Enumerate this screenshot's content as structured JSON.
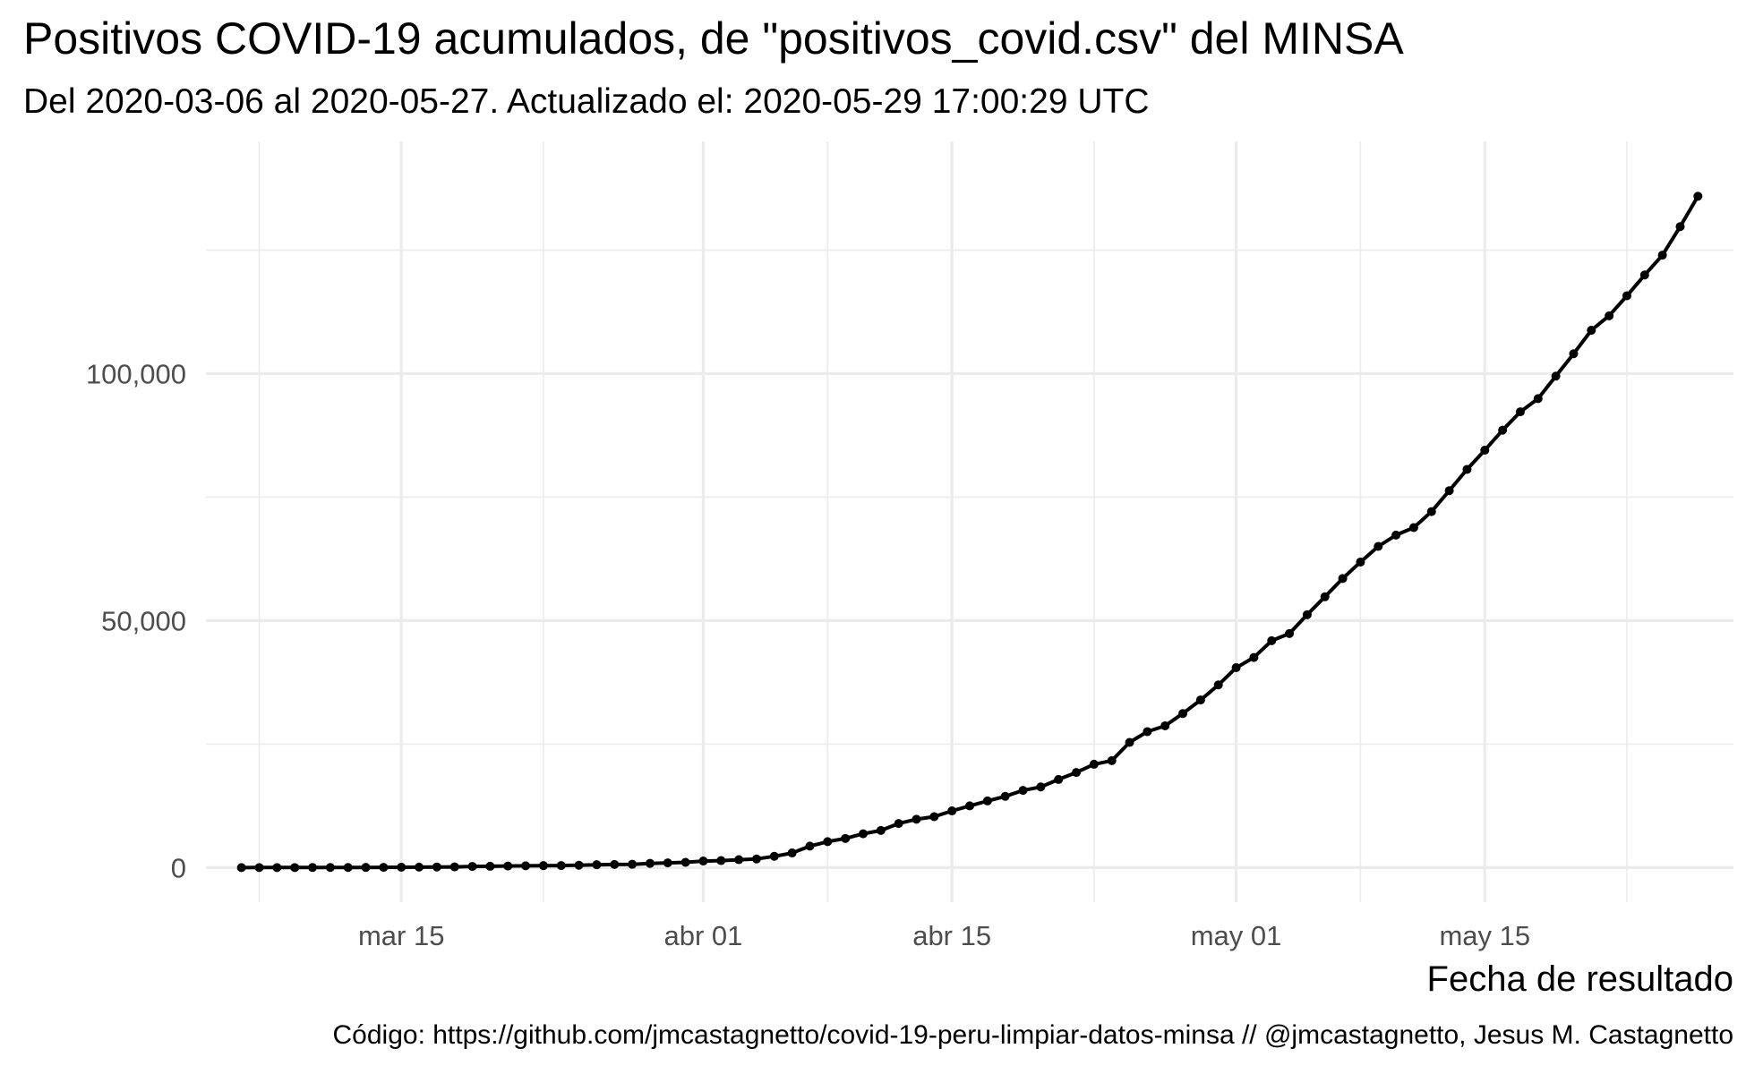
{
  "title": "Positivos COVID-19 acumulados, de \"positivos_covid.csv\" del MINSA",
  "subtitle": "Del 2020-03-06 al 2020-05-27. Actualizado el: 2020-05-29 17:00:29 UTC",
  "caption": "Código: https://github.com/jmcastagnetto/covid-19-peru-limpiar-datos-minsa // @jmcastagnetto, Jesus M. Castagnetto",
  "chart_data": {
    "type": "line",
    "title": "Positivos COVID-19 acumulados, de \"positivos_covid.csv\" del MINSA",
    "subtitle": "Del 2020-03-06 al 2020-05-27. Actualizado el: 2020-05-29 17:00:29 UTC",
    "xlabel": "Fecha de resultado",
    "ylabel": "",
    "x_start": "2020-03-06",
    "x_end": "2020-05-27",
    "xlim": [
      "2020-03-04",
      "2020-05-29"
    ],
    "ylim": [
      -7000,
      147000
    ],
    "x_ticks": [
      {
        "date": "2020-03-15",
        "label": "mar 15"
      },
      {
        "date": "2020-04-01",
        "label": "abr 01"
      },
      {
        "date": "2020-04-15",
        "label": "abr 15"
      },
      {
        "date": "2020-05-01",
        "label": "may 01"
      },
      {
        "date": "2020-05-15",
        "label": "may 15"
      }
    ],
    "x_minor_ticks": [
      "2020-03-07",
      "2020-03-23",
      "2020-04-08",
      "2020-04-23",
      "2020-05-08",
      "2020-05-23"
    ],
    "y_ticks": [
      {
        "value": 0,
        "label": "0"
      },
      {
        "value": 50000,
        "label": "50,000"
      },
      {
        "value": 100000,
        "label": "100,000"
      }
    ],
    "y_minor_ticks": [
      25000,
      75000,
      125000
    ],
    "grid": true,
    "series": [
      {
        "color": "#000000",
        "points": [
          {
            "x": "2020-03-06",
            "y": 1
          },
          {
            "x": "2020-03-07",
            "y": 5
          },
          {
            "x": "2020-03-08",
            "y": 7
          },
          {
            "x": "2020-03-09",
            "y": 9
          },
          {
            "x": "2020-03-10",
            "y": 11
          },
          {
            "x": "2020-03-11",
            "y": 17
          },
          {
            "x": "2020-03-12",
            "y": 22
          },
          {
            "x": "2020-03-13",
            "y": 38
          },
          {
            "x": "2020-03-14",
            "y": 43
          },
          {
            "x": "2020-03-15",
            "y": 71
          },
          {
            "x": "2020-03-16",
            "y": 86
          },
          {
            "x": "2020-03-17",
            "y": 117
          },
          {
            "x": "2020-03-18",
            "y": 145
          },
          {
            "x": "2020-03-19",
            "y": 234
          },
          {
            "x": "2020-03-20",
            "y": 263
          },
          {
            "x": "2020-03-21",
            "y": 318
          },
          {
            "x": "2020-03-22",
            "y": 363
          },
          {
            "x": "2020-03-23",
            "y": 395
          },
          {
            "x": "2020-03-24",
            "y": 416
          },
          {
            "x": "2020-03-25",
            "y": 480
          },
          {
            "x": "2020-03-26",
            "y": 580
          },
          {
            "x": "2020-03-27",
            "y": 635
          },
          {
            "x": "2020-03-28",
            "y": 671
          },
          {
            "x": "2020-03-29",
            "y": 852
          },
          {
            "x": "2020-03-30",
            "y": 950
          },
          {
            "x": "2020-03-31",
            "y": 1065
          },
          {
            "x": "2020-04-01",
            "y": 1323
          },
          {
            "x": "2020-04-02",
            "y": 1414
          },
          {
            "x": "2020-04-03",
            "y": 1595
          },
          {
            "x": "2020-04-04",
            "y": 1746
          },
          {
            "x": "2020-04-05",
            "y": 2281
          },
          {
            "x": "2020-04-06",
            "y": 2954
          },
          {
            "x": "2020-04-07",
            "y": 4342
          },
          {
            "x": "2020-04-08",
            "y": 5256
          },
          {
            "x": "2020-04-09",
            "y": 5897
          },
          {
            "x": "2020-04-10",
            "y": 6848
          },
          {
            "x": "2020-04-11",
            "y": 7519
          },
          {
            "x": "2020-04-12",
            "y": 8920
          },
          {
            "x": "2020-04-13",
            "y": 9784
          },
          {
            "x": "2020-04-14",
            "y": 10303
          },
          {
            "x": "2020-04-15",
            "y": 11475
          },
          {
            "x": "2020-04-16",
            "y": 12491
          },
          {
            "x": "2020-04-17",
            "y": 13489
          },
          {
            "x": "2020-04-18",
            "y": 14420
          },
          {
            "x": "2020-04-19",
            "y": 15628
          },
          {
            "x": "2020-04-20",
            "y": 16325
          },
          {
            "x": "2020-04-21",
            "y": 17837
          },
          {
            "x": "2020-04-22",
            "y": 19250
          },
          {
            "x": "2020-04-23",
            "y": 20914
          },
          {
            "x": "2020-04-24",
            "y": 21648
          },
          {
            "x": "2020-04-25",
            "y": 25331
          },
          {
            "x": "2020-04-26",
            "y": 27517
          },
          {
            "x": "2020-04-27",
            "y": 28699
          },
          {
            "x": "2020-04-28",
            "y": 31190
          },
          {
            "x": "2020-04-29",
            "y": 33931
          },
          {
            "x": "2020-04-30",
            "y": 36976
          },
          {
            "x": "2020-05-01",
            "y": 40459
          },
          {
            "x": "2020-05-02",
            "y": 42534
          },
          {
            "x": "2020-05-03",
            "y": 45928
          },
          {
            "x": "2020-05-04",
            "y": 47372
          },
          {
            "x": "2020-05-05",
            "y": 51189
          },
          {
            "x": "2020-05-06",
            "y": 54817
          },
          {
            "x": "2020-05-07",
            "y": 58526
          },
          {
            "x": "2020-05-08",
            "y": 61847
          },
          {
            "x": "2020-05-09",
            "y": 65015
          },
          {
            "x": "2020-05-10",
            "y": 67307
          },
          {
            "x": "2020-05-11",
            "y": 68822
          },
          {
            "x": "2020-05-12",
            "y": 72059
          },
          {
            "x": "2020-05-13",
            "y": 76306
          },
          {
            "x": "2020-05-14",
            "y": 80604
          },
          {
            "x": "2020-05-15",
            "y": 84495
          },
          {
            "x": "2020-05-16",
            "y": 88541
          },
          {
            "x": "2020-05-17",
            "y": 92273
          },
          {
            "x": "2020-05-18",
            "y": 94933
          },
          {
            "x": "2020-05-19",
            "y": 99483
          },
          {
            "x": "2020-05-20",
            "y": 104020
          },
          {
            "x": "2020-05-21",
            "y": 108769
          },
          {
            "x": "2020-05-22",
            "y": 111698
          },
          {
            "x": "2020-05-23",
            "y": 115754
          },
          {
            "x": "2020-05-24",
            "y": 119959
          },
          {
            "x": "2020-05-25",
            "y": 123979
          },
          {
            "x": "2020-05-26",
            "y": 129751
          },
          {
            "x": "2020-05-27",
            "y": 135905
          }
        ]
      }
    ]
  }
}
